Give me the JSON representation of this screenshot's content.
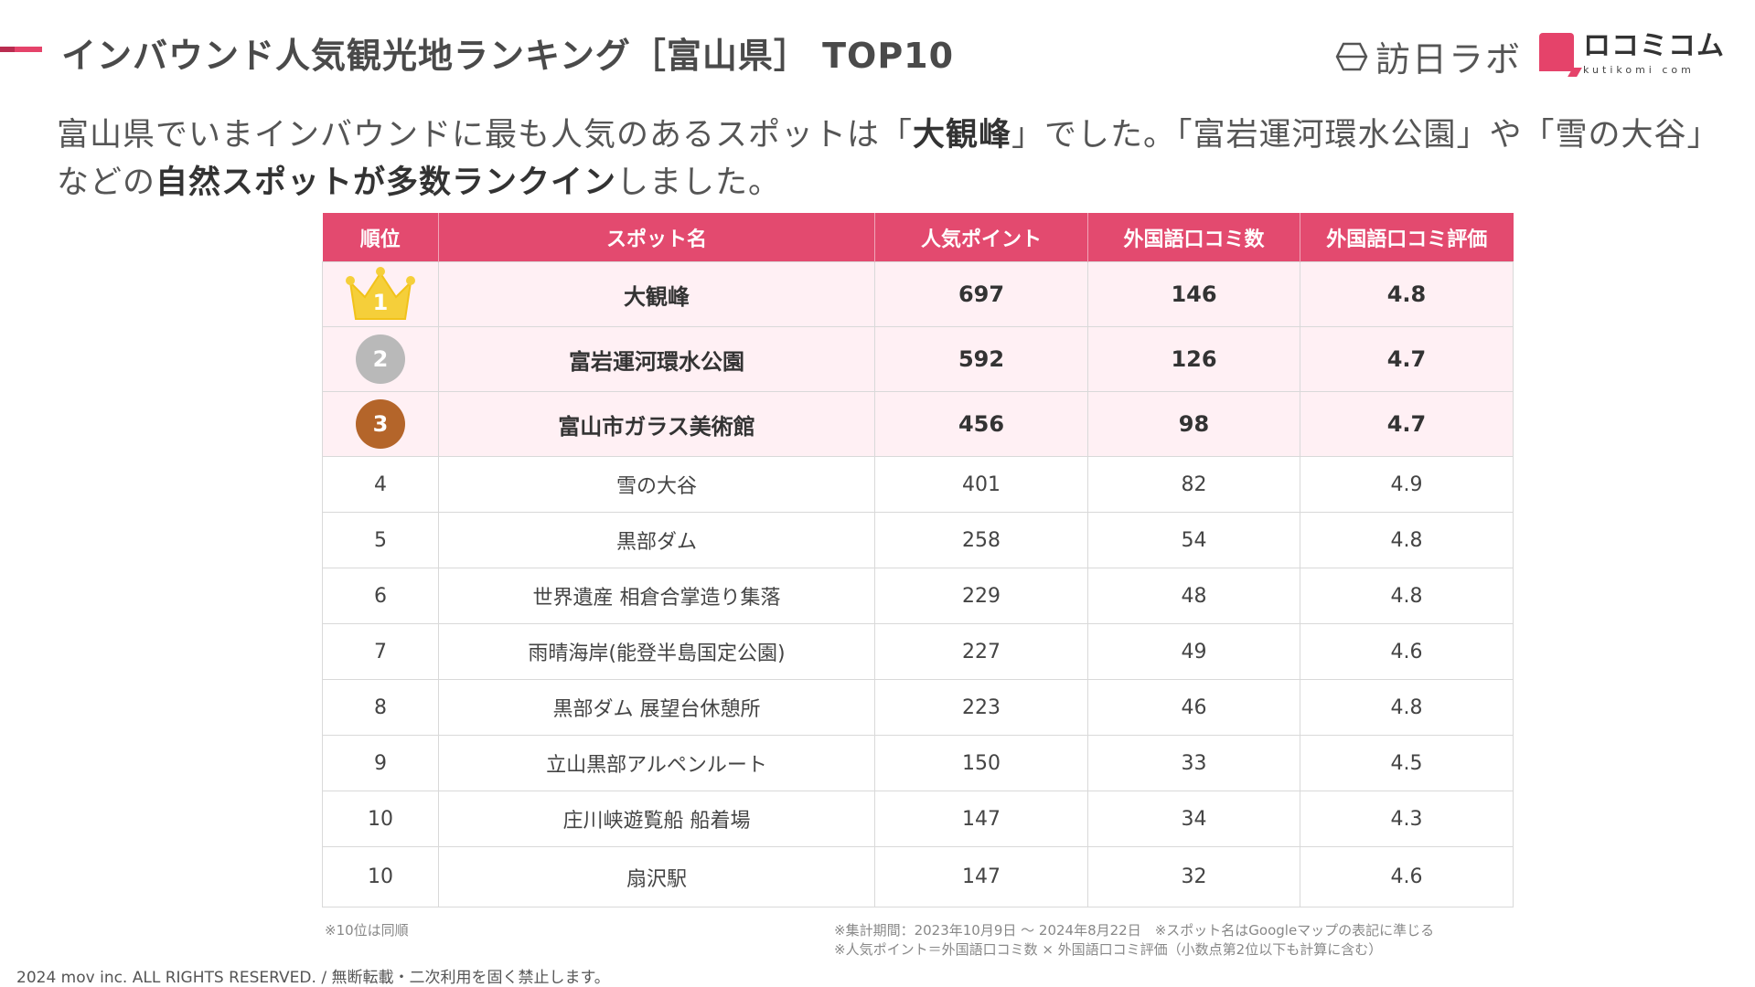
{
  "header": {
    "title": "インバウンド人気観光地ランキング［富山県］ TOP10",
    "logo_houniti": "訪日ラボ",
    "logo_kuchikomi": "ロコミコム",
    "logo_kuchikomi_sub": "kutikomi com",
    "accent_color": "#e5436a"
  },
  "lead": {
    "part1": "富山県でいまインバウンドに最も人気のあるスポットは「",
    "bold1": "大観峰",
    "part2": "」でした。「富岩運河環水公園」や「雪の大谷」などの",
    "bold2": "自然スポットが多数ランクイン",
    "part3": "しました。"
  },
  "table": {
    "headers": [
      "順位",
      "スポット名",
      "人気ポイント",
      "外国語口コミ数",
      "外国語口コミ評価"
    ],
    "rows": [
      {
        "rank": "1",
        "name": "大観峰",
        "points": "697",
        "reviews": "146",
        "rating": "4.8"
      },
      {
        "rank": "2",
        "name": "富岩運河環水公園",
        "points": "592",
        "reviews": "126",
        "rating": "4.7"
      },
      {
        "rank": "3",
        "name": "富山市ガラス美術館",
        "points": "456",
        "reviews": "98",
        "rating": "4.7"
      },
      {
        "rank": "4",
        "name": "雪の大谷",
        "points": "401",
        "reviews": "82",
        "rating": "4.9"
      },
      {
        "rank": "5",
        "name": "黒部ダム",
        "points": "258",
        "reviews": "54",
        "rating": "4.8"
      },
      {
        "rank": "6",
        "name": "世界遺産 相倉合掌造り集落",
        "points": "229",
        "reviews": "48",
        "rating": "4.8"
      },
      {
        "rank": "7",
        "name": "雨晴海岸(能登半島国定公園)",
        "points": "227",
        "reviews": "49",
        "rating": "4.6"
      },
      {
        "rank": "8",
        "name": "黒部ダム 展望台休憩所",
        "points": "223",
        "reviews": "46",
        "rating": "4.8"
      },
      {
        "rank": "9",
        "name": "立山黒部アルペンルート",
        "points": "150",
        "reviews": "33",
        "rating": "4.5"
      },
      {
        "rank": "10",
        "name": "庄川峡遊覧船 船着場",
        "points": "147",
        "reviews": "34",
        "rating": "4.3"
      },
      {
        "rank": "10",
        "name": "扇沢駅",
        "points": "147",
        "reviews": "32",
        "rating": "4.6"
      }
    ]
  },
  "notes": {
    "tie": "※10位は同順",
    "period": "※集計期間：2023年10月9日 ～ 2024年8月22日　※スポット名はGoogleマップの表記に準じる",
    "formula": "※人気ポイント＝外国語口コミ数 × 外国語口コミ評価（小数点第2位以下も計算に含む）"
  },
  "footer": {
    "copyright": "2024 mov inc. ALL RIGHTS RESERVED. / 無断転載・二次利用を固く禁止します。"
  },
  "icons": {
    "crown": "crown-icon",
    "houniti_mark": "hexagon-logo-icon",
    "kuchikomi_mark": "speech-bubble-logo-icon"
  }
}
